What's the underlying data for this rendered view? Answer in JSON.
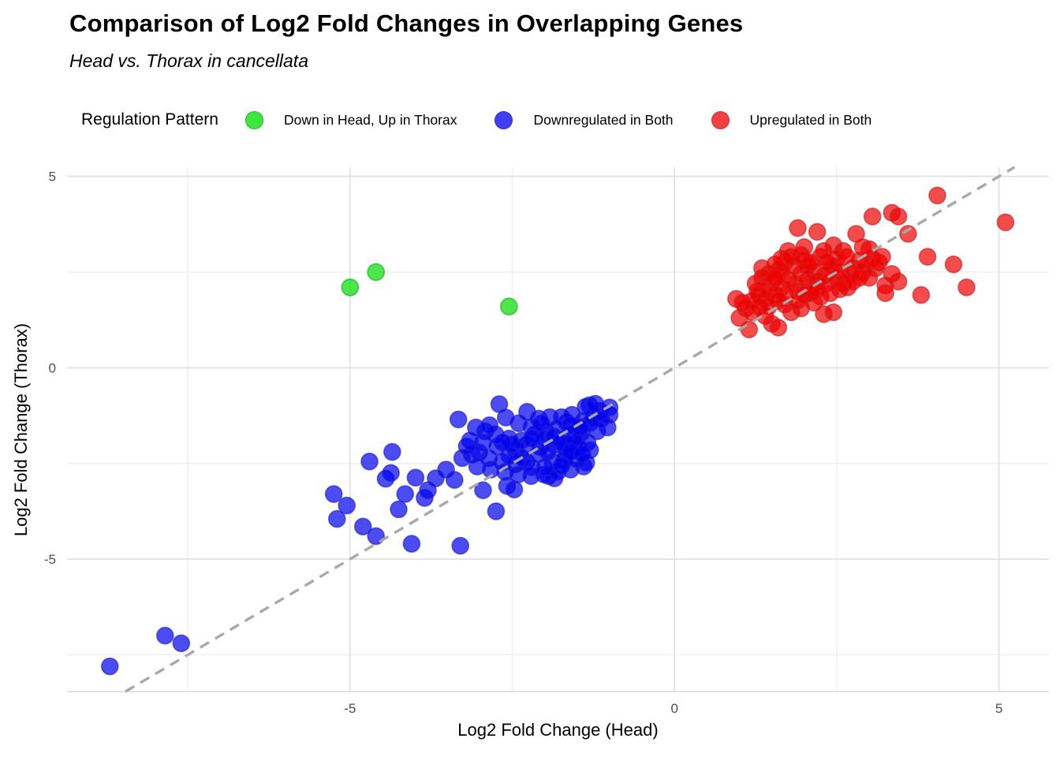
{
  "chart_data": {
    "type": "scatter",
    "title": "Comparison of Log2 Fold Changes in Overlapping Genes",
    "subtitle": "Head vs. Thorax in cancellata",
    "xlabel": "Log2 Fold Change (Head)",
    "ylabel": "Log2 Fold Change (Thorax)",
    "xlim": [
      -9.36,
      5.77
    ],
    "ylim": [
      -8.46,
      5.24
    ],
    "x_major_ticks": [
      -5,
      0,
      5
    ],
    "x_minor_ticks": [
      -7.5,
      -2.5,
      2.5
    ],
    "y_major_ticks": [
      5,
      0,
      -5
    ],
    "y_minor_ticks": [
      2.5,
      -2.5,
      -7.5
    ],
    "grid": true,
    "background": "#ffffff",
    "legend_position": "top",
    "legend_title": "Regulation Pattern",
    "identity_line": {
      "style": "dashed",
      "color": "#a9a9a9",
      "from": -8.46,
      "to": 5.24
    },
    "series": [
      {
        "name": "Down in Head, Up in Thorax",
        "color": "#00DD00",
        "stroke": "#09B009",
        "points": [
          [
            -5.0,
            2.1
          ],
          [
            -4.6,
            2.5
          ],
          [
            -2.55,
            1.6
          ]
        ]
      },
      {
        "name": "Downregulated in Both",
        "color": "#0000EE",
        "stroke": "#2222CC",
        "points": [
          [
            -8.7,
            -7.8
          ],
          [
            -7.85,
            -7.0
          ],
          [
            -7.6,
            -7.2
          ],
          [
            -5.25,
            -3.3
          ],
          [
            -5.05,
            -3.6
          ],
          [
            -5.2,
            -3.95
          ],
          [
            -4.8,
            -4.15
          ],
          [
            -4.6,
            -4.4
          ],
          [
            -4.05,
            -4.6
          ],
          [
            -3.3,
            -4.65
          ],
          [
            -4.7,
            -2.45
          ],
          [
            -4.35,
            -2.2
          ],
          [
            -4.45,
            -2.9
          ],
          [
            -4.37,
            -2.75
          ],
          [
            -4.25,
            -3.7
          ],
          [
            -4.15,
            -3.3
          ],
          [
            -3.85,
            -3.4
          ],
          [
            -3.8,
            -3.2
          ],
          [
            -3.99,
            -2.87
          ],
          [
            -3.68,
            -2.89
          ],
          [
            -3.52,
            -2.66
          ],
          [
            -3.39,
            -2.93
          ],
          [
            -3.12,
            -2.27
          ],
          [
            -3.33,
            -1.35
          ],
          [
            -3.27,
            -2.36
          ],
          [
            -2.95,
            -3.2
          ],
          [
            -2.75,
            -3.75
          ],
          [
            -2.58,
            -3.09
          ],
          [
            -2.47,
            -3.18
          ],
          [
            -1.94,
            -2.83
          ],
          [
            -1.85,
            -2.89
          ],
          [
            -3.06,
            -1.56
          ],
          [
            -2.92,
            -1.66
          ],
          [
            -2.76,
            -1.74
          ],
          [
            -2.95,
            -1.95
          ],
          [
            -2.73,
            -2.05
          ],
          [
            -3.01,
            -2.21
          ],
          [
            -2.86,
            -2.36
          ],
          [
            -2.65,
            -2.46
          ],
          [
            -2.45,
            -2.52
          ],
          [
            -2.28,
            -2.46
          ],
          [
            -2.45,
            -2.15
          ],
          [
            -2.28,
            -2.01
          ],
          [
            -2.07,
            -2.07
          ],
          [
            -1.86,
            -2.01
          ],
          [
            -1.68,
            -2.07
          ],
          [
            -1.49,
            -2.05
          ],
          [
            -1.34,
            -1.95
          ],
          [
            -1.62,
            -1.76
          ],
          [
            -1.43,
            -1.7
          ],
          [
            -1.19,
            -1.66
          ],
          [
            -1.03,
            -1.56
          ],
          [
            -2.7,
            -0.95
          ],
          [
            -2.27,
            -1.15
          ],
          [
            -2.09,
            -1.33
          ],
          [
            -1.92,
            -1.29
          ],
          [
            -1.31,
            -0.98
          ],
          [
            -1.15,
            -1.13
          ],
          [
            -1.0,
            -1.23
          ],
          [
            -1.24,
            -1.29
          ],
          [
            -1.4,
            -1.39
          ],
          [
            -1.66,
            -1.43
          ],
          [
            -1.82,
            -1.6
          ],
          [
            -1.98,
            -1.66
          ],
          [
            -2.15,
            -1.74
          ],
          [
            -3.04,
            -2.58
          ],
          [
            -2.83,
            -2.66
          ],
          [
            -2.61,
            -2.72
          ],
          [
            -2.41,
            -2.79
          ],
          [
            -2.21,
            -2.83
          ],
          [
            -2.01,
            -2.79
          ],
          [
            -1.8,
            -2.72
          ],
          [
            -1.6,
            -2.66
          ],
          [
            -1.4,
            -2.58
          ],
          [
            -1.88,
            -2.46
          ],
          [
            -1.7,
            -2.42
          ],
          [
            -1.74,
            -1.29
          ],
          [
            -1.58,
            -1.23
          ],
          [
            -1.37,
            -1.02
          ],
          [
            -1.22,
            -0.94
          ],
          [
            -1.0,
            -1.04
          ],
          [
            -1.13,
            -1.35
          ],
          [
            -1.3,
            -1.45
          ],
          [
            -1.46,
            -1.6
          ],
          [
            -1.64,
            -2.01
          ],
          [
            -1.48,
            -2.07
          ],
          [
            -1.3,
            -2.15
          ],
          [
            -1.68,
            -2.27
          ],
          [
            -1.52,
            -2.38
          ],
          [
            -1.36,
            -2.48
          ],
          [
            -1.74,
            -2.56
          ],
          [
            -2.35,
            -1.9
          ],
          [
            -2.55,
            -1.85
          ],
          [
            -2.2,
            -1.55
          ],
          [
            -2.4,
            -1.45
          ],
          [
            -2.6,
            -1.3
          ],
          [
            -2.05,
            -1.45
          ],
          [
            -3.15,
            -1.9
          ],
          [
            -3.2,
            -2.05
          ],
          [
            -2.55,
            -2.3
          ],
          [
            -2.1,
            -2.25
          ],
          [
            -1.95,
            -2.2
          ],
          [
            -2.0,
            -1.85
          ],
          [
            -1.85,
            -1.8
          ],
          [
            -2.2,
            -1.85
          ],
          [
            -1.75,
            -1.95
          ],
          [
            -1.55,
            -1.85
          ],
          [
            -1.45,
            -1.55
          ],
          [
            -1.6,
            -1.5
          ],
          [
            -2.5,
            -2.0
          ],
          [
            -2.65,
            -1.95
          ],
          [
            -2.35,
            -2.35
          ],
          [
            -2.2,
            -2.6
          ],
          [
            -2.0,
            -2.6
          ],
          [
            -1.6,
            -2.2
          ],
          [
            -1.42,
            -2.25
          ],
          [
            -2.85,
            -1.5
          ]
        ]
      },
      {
        "name": "Upregulated in Both",
        "color": "#EE0000",
        "stroke": "#CC2222",
        "points": [
          [
            0.95,
            1.8
          ],
          [
            1.0,
            1.3
          ],
          [
            1.15,
            1.0
          ],
          [
            1.5,
            1.15
          ],
          [
            1.6,
            1.05
          ],
          [
            1.28,
            2.0
          ],
          [
            1.8,
            1.45
          ],
          [
            1.95,
            1.55
          ],
          [
            2.15,
            1.7
          ],
          [
            2.25,
            1.85
          ],
          [
            2.3,
            1.4
          ],
          [
            2.45,
            1.45
          ],
          [
            1.35,
            2.6
          ],
          [
            1.6,
            2.55
          ],
          [
            1.7,
            2.75
          ],
          [
            1.75,
            3.05
          ],
          [
            1.9,
            3.65
          ],
          [
            2.2,
            3.55
          ],
          [
            2.0,
            3.15
          ],
          [
            2.0,
            2.8
          ],
          [
            2.25,
            2.9
          ],
          [
            2.45,
            3.2
          ],
          [
            2.6,
            3.05
          ],
          [
            2.8,
            3.5
          ],
          [
            3.05,
            3.95
          ],
          [
            2.45,
            2.65
          ],
          [
            2.85,
            2.8
          ],
          [
            3.1,
            2.6
          ],
          [
            3.35,
            4.05
          ],
          [
            3.45,
            3.95
          ],
          [
            3.6,
            3.5
          ],
          [
            4.05,
            4.5
          ],
          [
            5.1,
            3.8
          ],
          [
            3.9,
            2.9
          ],
          [
            4.3,
            2.7
          ],
          [
            4.5,
            2.1
          ],
          [
            3.8,
            1.9
          ],
          [
            3.45,
            2.25
          ],
          [
            3.25,
            2.15
          ],
          [
            3.25,
            1.95
          ],
          [
            2.67,
            2.1
          ],
          [
            3.35,
            2.45
          ],
          [
            1.2,
            1.75
          ],
          [
            1.3,
            1.9
          ],
          [
            1.4,
            1.8
          ],
          [
            1.45,
            2.0
          ],
          [
            1.55,
            1.9
          ],
          [
            1.5,
            2.2
          ],
          [
            1.65,
            2.1
          ],
          [
            1.7,
            1.9
          ],
          [
            1.75,
            2.3
          ],
          [
            1.85,
            2.2
          ],
          [
            1.9,
            2.0
          ],
          [
            1.95,
            2.45
          ],
          [
            2.05,
            2.3
          ],
          [
            2.1,
            2.1
          ],
          [
            2.15,
            2.5
          ],
          [
            2.2,
            2.25
          ],
          [
            2.3,
            2.4
          ],
          [
            2.35,
            2.2
          ],
          [
            2.4,
            2.55
          ],
          [
            2.5,
            2.35
          ],
          [
            2.55,
            2.5
          ],
          [
            2.6,
            2.2
          ],
          [
            2.7,
            2.45
          ],
          [
            2.75,
            2.6
          ],
          [
            2.9,
            2.5
          ],
          [
            2.95,
            2.7
          ],
          [
            3.0,
            2.35
          ],
          [
            3.05,
            2.85
          ],
          [
            1.25,
            2.2
          ],
          [
            1.35,
            2.35
          ],
          [
            1.45,
            2.45
          ],
          [
            1.1,
            1.55
          ],
          [
            1.2,
            1.45
          ],
          [
            1.3,
            1.6
          ],
          [
            1.05,
            1.7
          ],
          [
            1.55,
            2.7
          ],
          [
            1.65,
            2.5
          ],
          [
            1.85,
            2.65
          ],
          [
            2.05,
            2.65
          ],
          [
            2.5,
            2.85
          ],
          [
            2.65,
            2.9
          ],
          [
            2.35,
            2.75
          ],
          [
            1.4,
            1.35
          ],
          [
            1.7,
            1.65
          ],
          [
            1.9,
            1.75
          ],
          [
            2.0,
            1.9
          ],
          [
            2.1,
            1.95
          ],
          [
            2.2,
            2.05
          ],
          [
            1.6,
            1.75
          ],
          [
            1.45,
            1.6
          ],
          [
            2.75,
            2.25
          ],
          [
            2.85,
            2.35
          ],
          [
            2.55,
            2.05
          ],
          [
            2.4,
            1.95
          ],
          [
            3.15,
            2.75
          ],
          [
            3.2,
            2.9
          ],
          [
            2.9,
            3.15
          ],
          [
            3.0,
            3.1
          ],
          [
            1.55,
            2.35
          ],
          [
            1.65,
            2.85
          ],
          [
            1.8,
            2.9
          ],
          [
            1.95,
            2.95
          ],
          [
            2.1,
            2.75
          ],
          [
            2.3,
            3.05
          ]
        ]
      }
    ]
  }
}
